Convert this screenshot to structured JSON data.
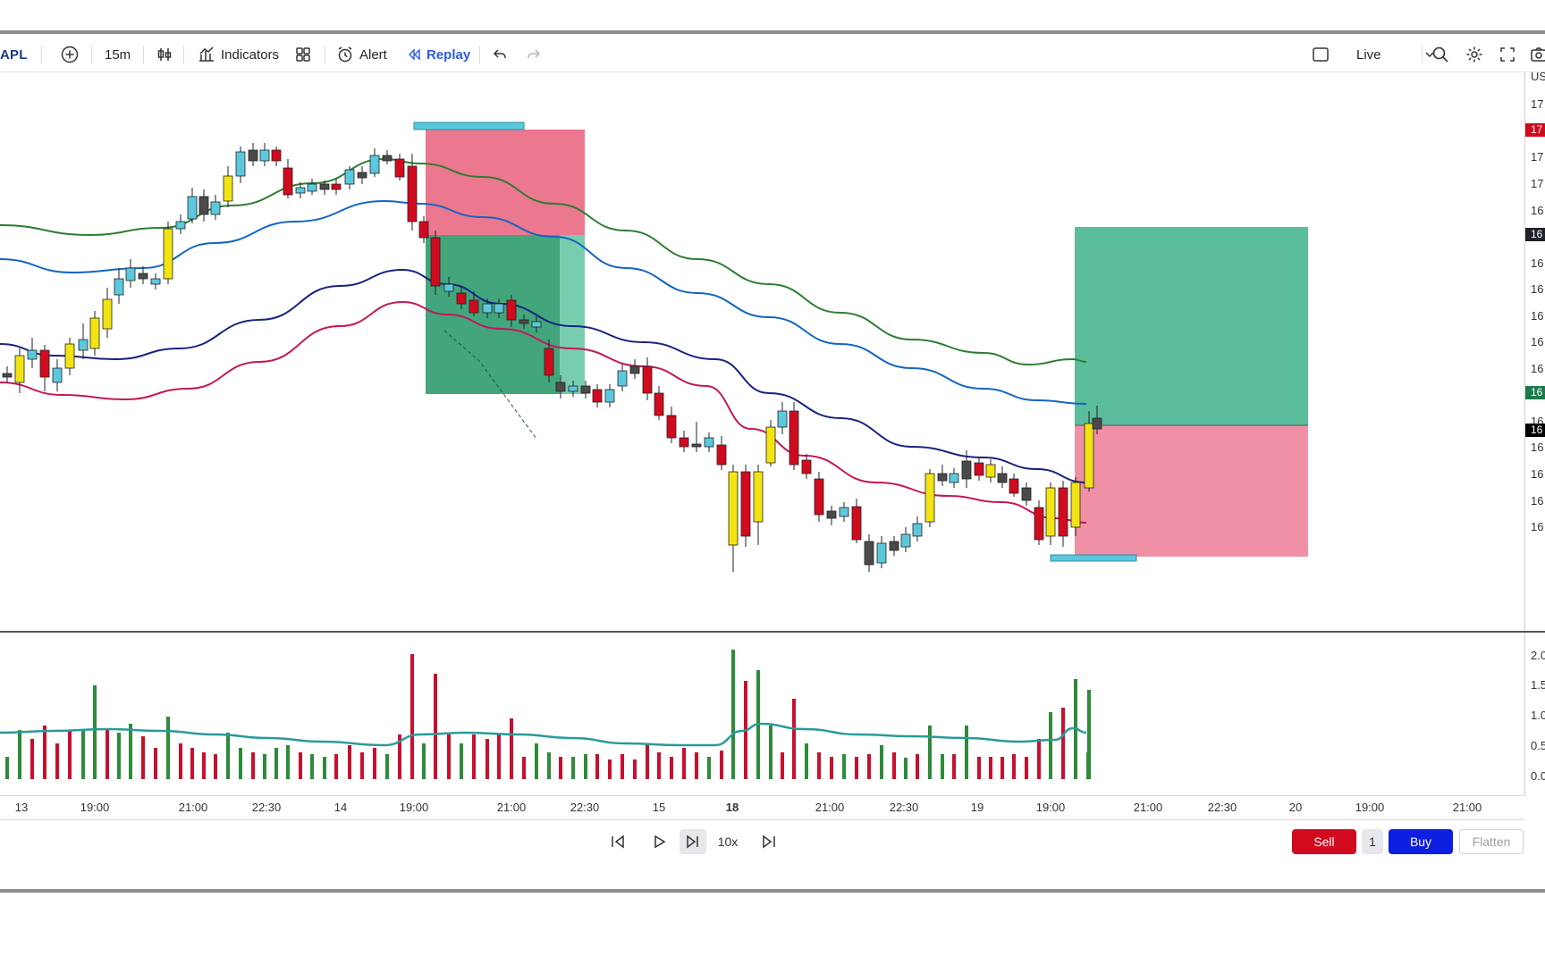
{
  "toolbar": {
    "symbol": "APL",
    "interval": "15m",
    "indicators_label": "Indicators",
    "alert_label": "Alert",
    "replay_label": "Replay",
    "mode_select": "Live",
    "icons": [
      "add-symbol-icon",
      "bar-style-icon",
      "indicators-icon",
      "templates-icon",
      "alert-icon",
      "replay-icon",
      "undo-icon",
      "redo-icon",
      "layout-icon",
      "chevron-down-icon",
      "search-icon",
      "gear-icon",
      "fullscreen-icon",
      "camera-icon"
    ]
  },
  "price_axis": {
    "labels": [
      "US",
      "17",
      "17",
      "17",
      "17",
      "16",
      "16",
      "16",
      "16",
      "16",
      "16",
      "16",
      "16",
      "16",
      "16",
      "16",
      "16",
      "16"
    ],
    "badges": [
      {
        "text": "17",
        "color": "#d10a1e"
      },
      {
        "text": "16",
        "color": "#1f2328"
      },
      {
        "text": "16",
        "color": "#1e7a4c"
      },
      {
        "text": "16",
        "color": "#000000"
      }
    ]
  },
  "volume_axis": {
    "labels": [
      "2.0",
      "1.5",
      "1.0",
      "0.5",
      "0.0"
    ]
  },
  "time_axis": {
    "labels": [
      {
        "text": "13",
        "bold": false
      },
      {
        "text": "19:00",
        "bold": false
      },
      {
        "text": "21:00",
        "bold": false
      },
      {
        "text": "22:30",
        "bold": false
      },
      {
        "text": "14",
        "bold": false
      },
      {
        "text": "19:00",
        "bold": false
      },
      {
        "text": "21:00",
        "bold": false
      },
      {
        "text": "22:30",
        "bold": false
      },
      {
        "text": "15",
        "bold": false
      },
      {
        "text": "18",
        "bold": true
      },
      {
        "text": "21:00",
        "bold": false
      },
      {
        "text": "22:30",
        "bold": false
      },
      {
        "text": "19",
        "bold": false
      },
      {
        "text": "19:00",
        "bold": false
      },
      {
        "text": "21:00",
        "bold": false
      },
      {
        "text": "22:30",
        "bold": false
      },
      {
        "text": "20",
        "bold": false
      },
      {
        "text": "19:00",
        "bold": false
      },
      {
        "text": "21:00",
        "bold": false
      }
    ]
  },
  "replay": {
    "speed": "10x",
    "sell_label": "Sell",
    "quantity": "1",
    "buy_label": "Buy",
    "flatten_label": "Flatten"
  },
  "colors": {
    "bull_fill": "#f2e313",
    "bull_alt_fill": "#5cc8de",
    "bear_fill": "#d10a1e",
    "doji_fill": "#4a4a4a",
    "ma_green": "#2e7d32",
    "ma_blue": "#1565c0",
    "ma_navy": "#1a237e",
    "ma_red": "#c2185b",
    "profit_zone": "#2e9b6e",
    "loss_zone": "#e8607a"
  }
}
